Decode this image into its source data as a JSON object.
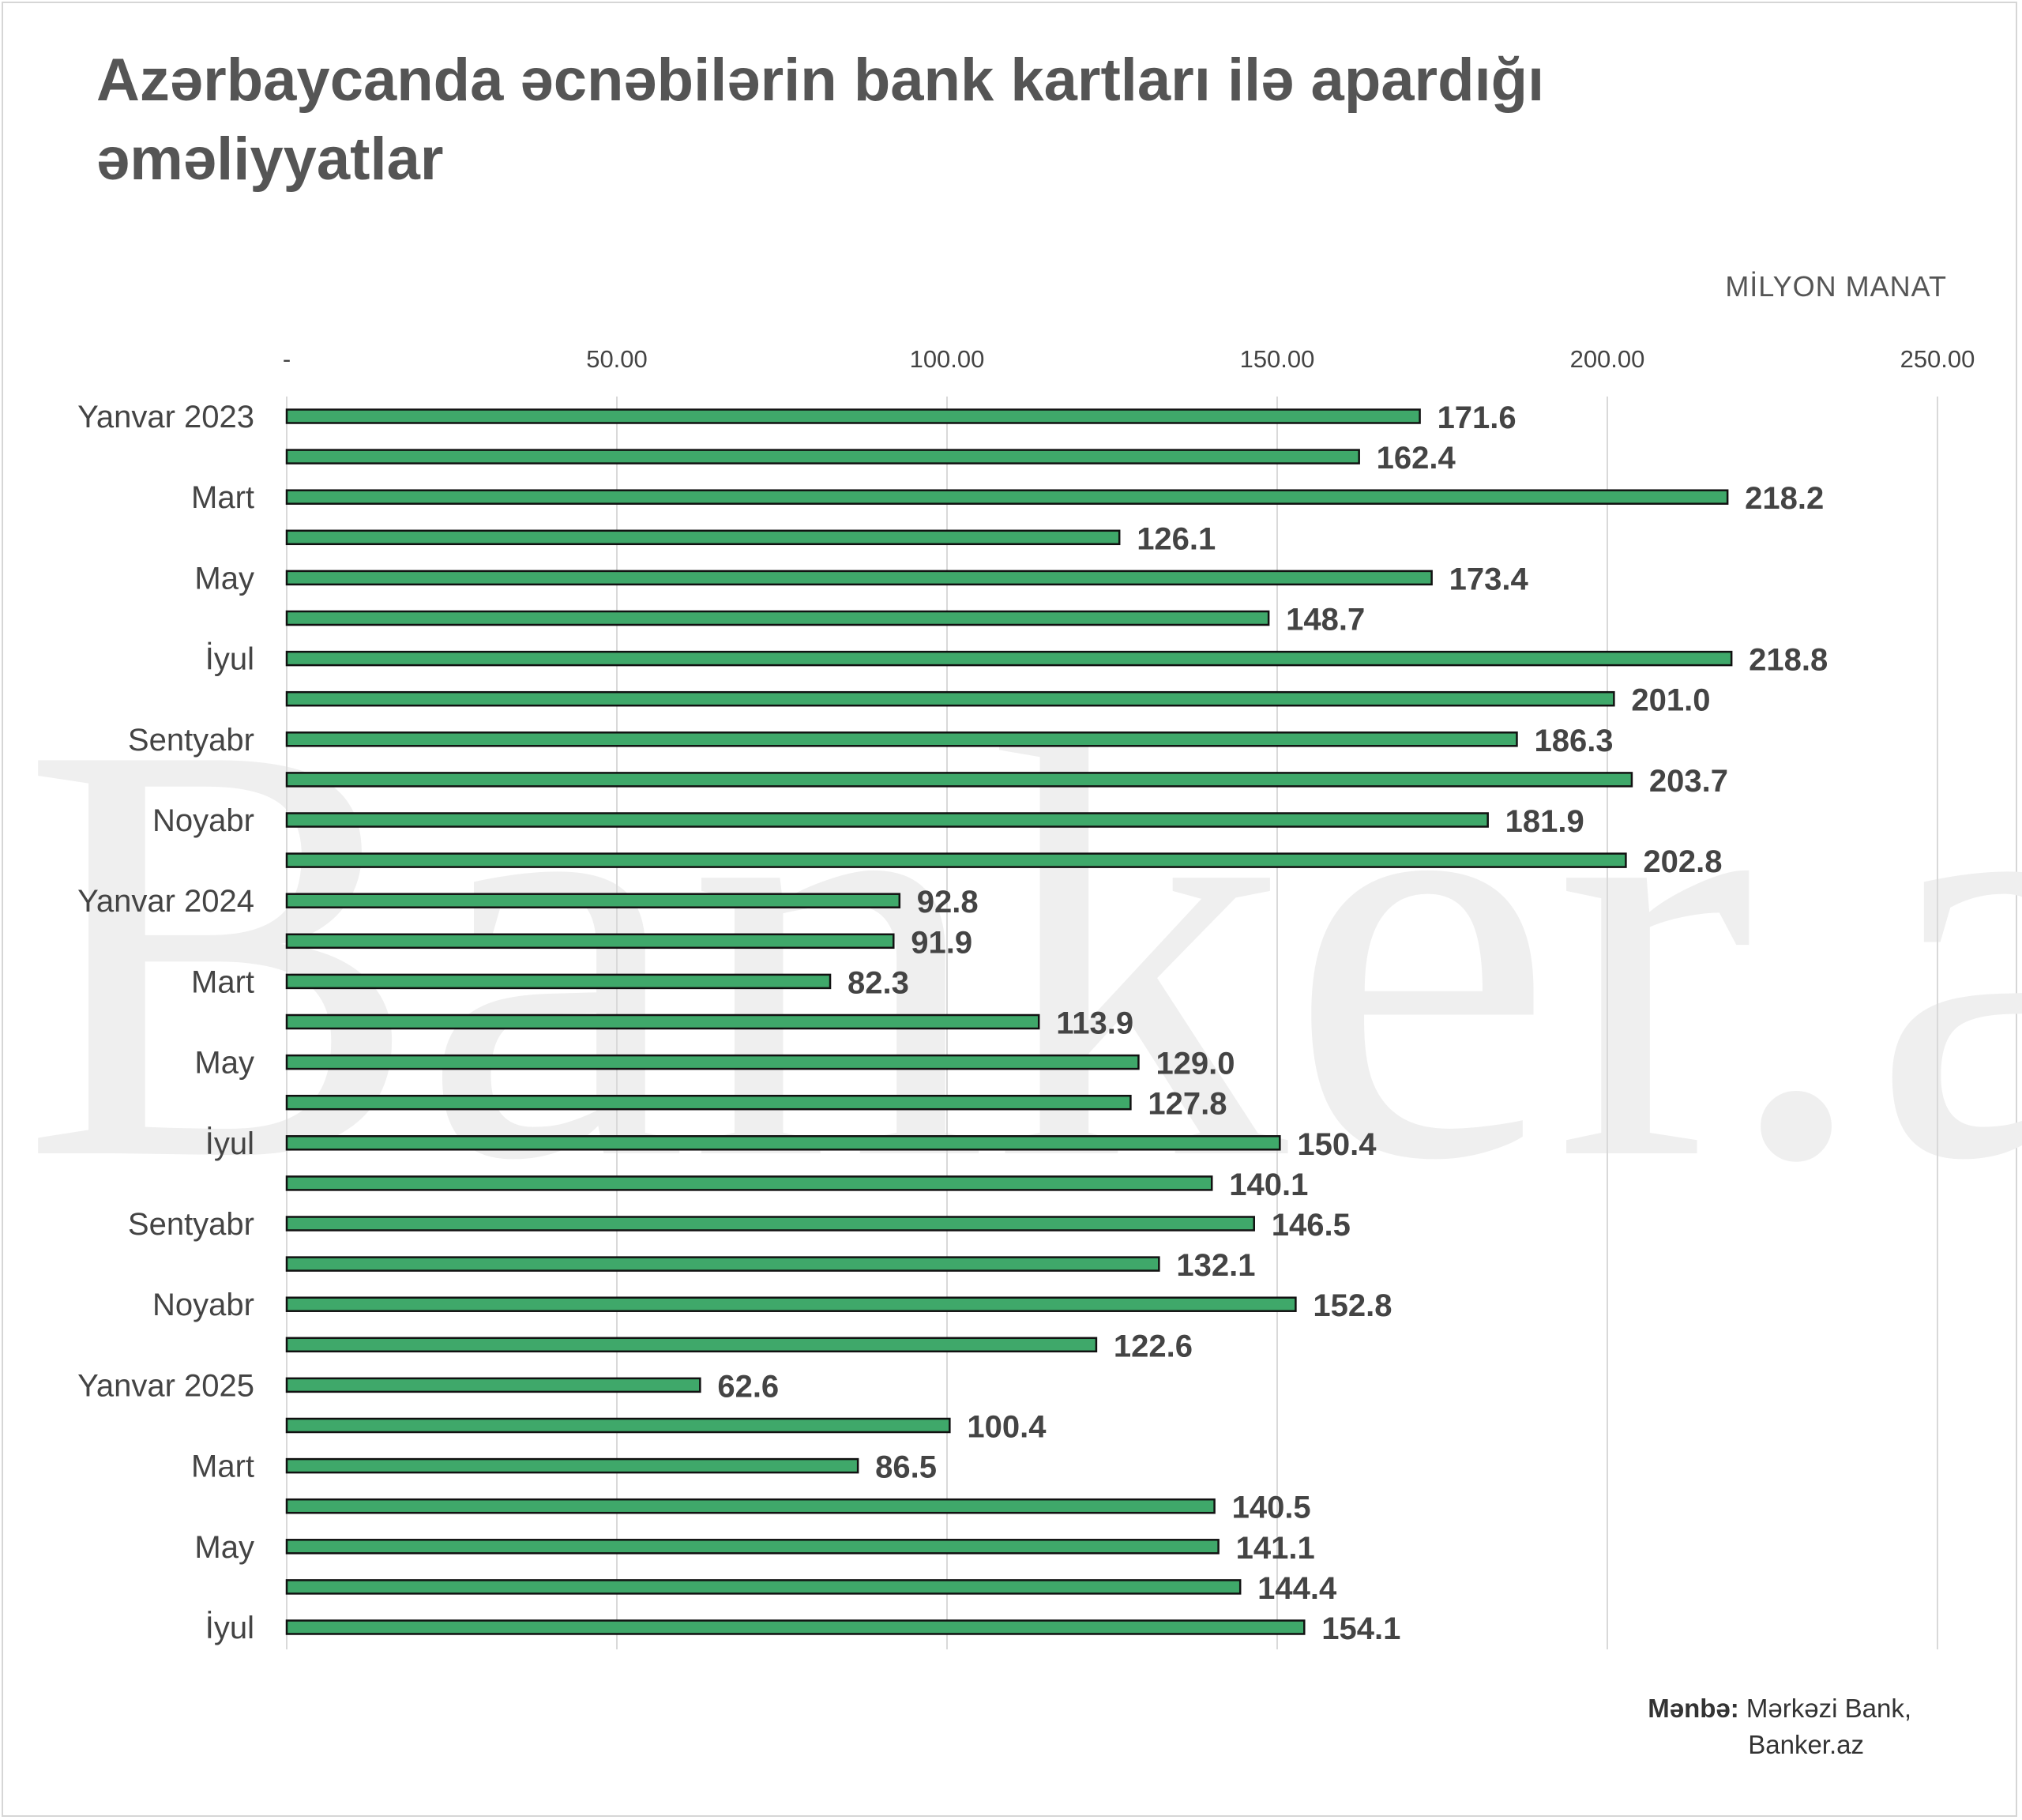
{
  "title": "Azərbaycanda əcnəbilərin bank kartları ilə apardığı əməliyyatlar",
  "unit_label": "MİLYON MANAT",
  "watermark": "Banker.az",
  "source": {
    "label": "Mənbə:",
    "line1": "Mərkəzi Bank,",
    "line2": "Banker.az"
  },
  "colors": {
    "bar_fill": "#3fa86a",
    "bar_stroke": "#111111",
    "grid": "#d9d9d9",
    "title": "#555555",
    "label": "#444444",
    "watermark": "#efefef"
  },
  "chart_data": {
    "type": "bar",
    "orientation": "horizontal",
    "title": "Azərbaycanda əcnəbilərin bank kartları ilə apardığı əməliyyatlar",
    "xlabel": "MİLYON MANAT",
    "xlim": [
      0,
      250
    ],
    "x_ticks": [
      0,
      50,
      100,
      150,
      200,
      250
    ],
    "x_tick_labels": [
      "-",
      "50.00",
      "100.00",
      "150.00",
      "200.00",
      "250.00"
    ],
    "grid": true,
    "legend": "none",
    "categories": [
      "Yanvar 2023",
      "",
      "Mart",
      "",
      "May",
      "",
      "İyul",
      "",
      "Sentyabr",
      "",
      "Noyabr",
      "",
      "Yanvar 2024",
      "",
      "Mart",
      "",
      "May",
      "",
      "İyul",
      "",
      "Sentyabr",
      "",
      "Noyabr",
      "",
      "Yanvar 2025",
      "",
      "Mart",
      "",
      "May",
      "",
      "İyul"
    ],
    "value_labels": [
      "171.6",
      "162.4",
      "218.2",
      "126.1",
      "173.4",
      "148.7",
      "218.8",
      "201.0",
      "186.3",
      "203.7",
      "181.9",
      "202.8",
      "92.8",
      "91.9",
      "82.3",
      "113.9",
      "129.0",
      "127.8",
      "150.4",
      "140.1",
      "146.5",
      "132.1",
      "152.8",
      "122.6",
      "62.6",
      "100.4",
      "86.5",
      "140.5",
      "141.1",
      "144.4",
      "154.1"
    ],
    "values": [
      171.6,
      162.4,
      218.2,
      126.1,
      173.4,
      148.7,
      218.8,
      201.0,
      186.3,
      203.7,
      181.9,
      202.8,
      92.8,
      91.9,
      82.3,
      113.9,
      129.0,
      127.8,
      150.4,
      140.1,
      146.5,
      132.1,
      152.8,
      122.6,
      62.6,
      100.4,
      86.5,
      140.5,
      141.1,
      144.4,
      154.1
    ]
  }
}
